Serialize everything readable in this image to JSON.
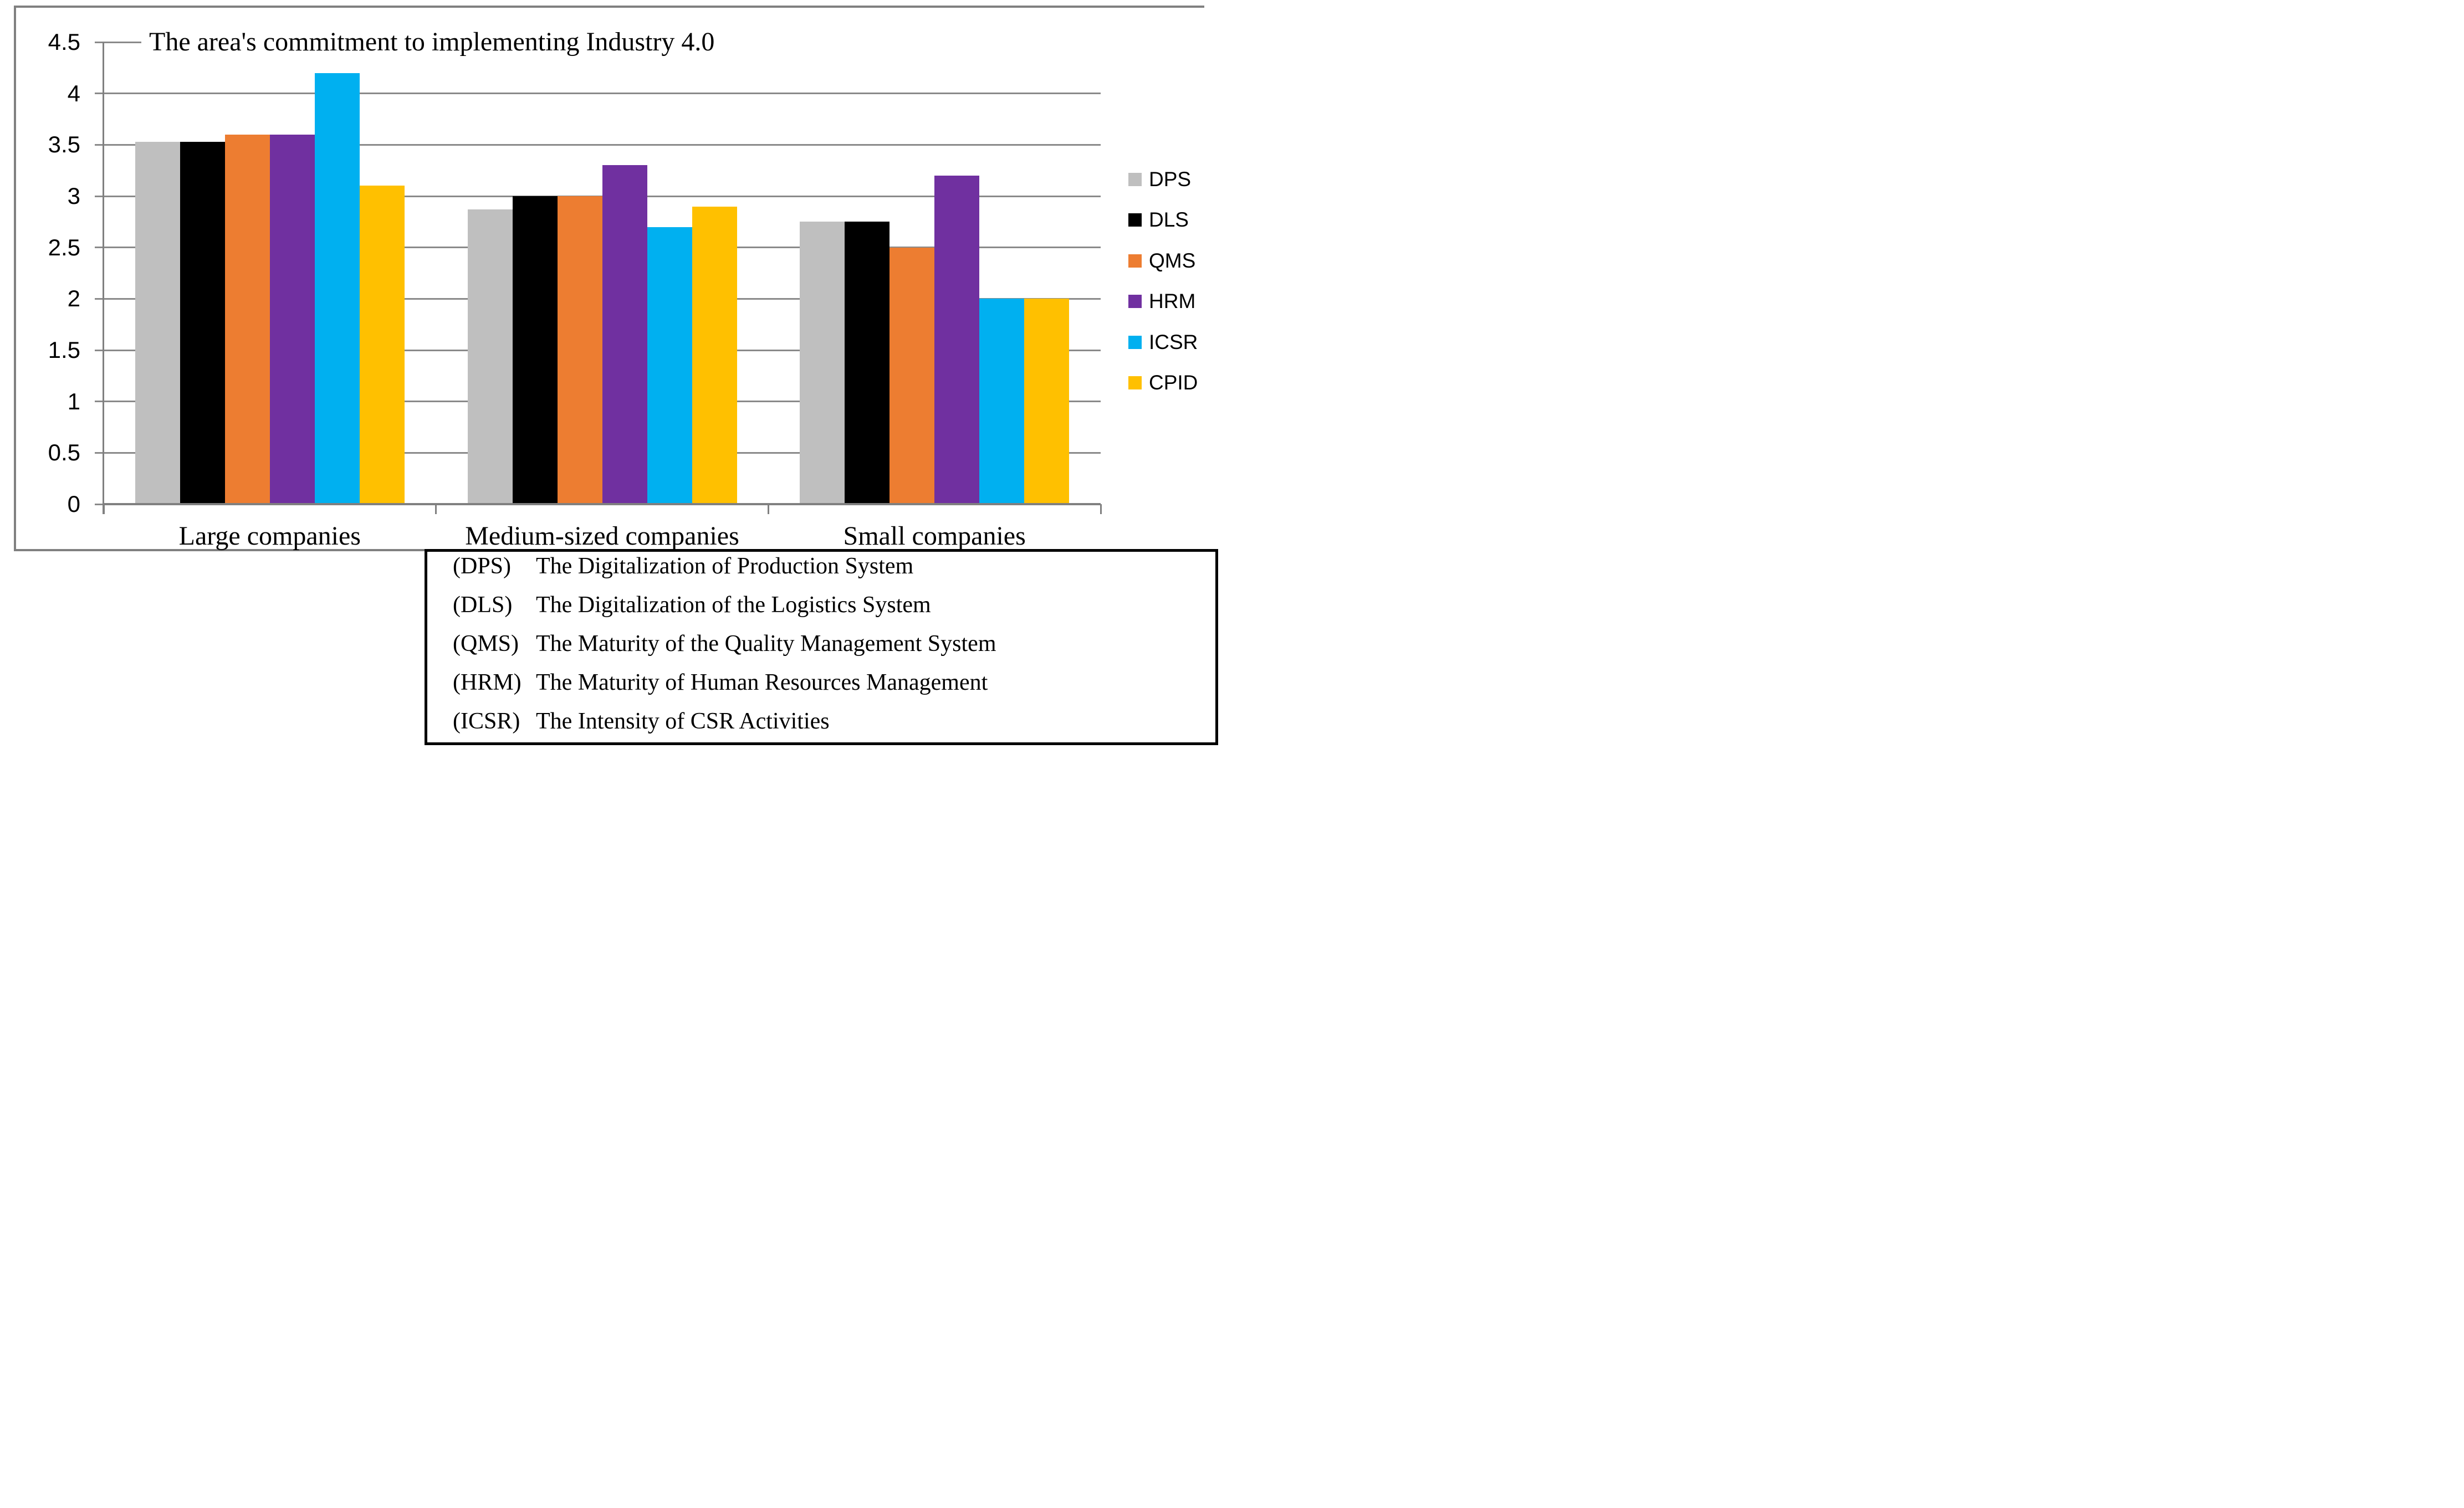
{
  "chart_data": {
    "type": "bar",
    "title": "The area's commitment to implementing Industry 4.0",
    "categories": [
      "Large companies",
      "Medium-sized companies",
      "Small companies"
    ],
    "series": [
      {
        "name": "DPS",
        "color": "#BFBFBF",
        "values": [
          3.53,
          2.87,
          2.75
        ]
      },
      {
        "name": "DLS",
        "color": "#000000",
        "values": [
          3.53,
          3.0,
          2.75
        ]
      },
      {
        "name": "QMS",
        "color": "#ED7D31",
        "values": [
          3.6,
          3.0,
          2.5
        ]
      },
      {
        "name": "HRM",
        "color": "#7030A0",
        "values": [
          3.6,
          3.3,
          3.2
        ]
      },
      {
        "name": "ICSR",
        "color": "#00B0F0",
        "values": [
          4.2,
          2.7,
          2.0
        ]
      },
      {
        "name": "CPID",
        "color": "#FFC000",
        "values": [
          3.1,
          2.9,
          2.0
        ]
      }
    ],
    "xlabel": "",
    "ylabel": "",
    "ylim": [
      0,
      4.5
    ],
    "ytick_labels": [
      "0",
      "0.5",
      "1",
      "1.5",
      "2",
      "2.5",
      "3",
      "3.5",
      "4",
      "4.5"
    ],
    "grid": true,
    "legend_position": "right"
  },
  "legend": {
    "items": [
      {
        "label": "DPS",
        "color": "#BFBFBF"
      },
      {
        "label": "DLS",
        "color": "#000000"
      },
      {
        "label": "QMS",
        "color": "#ED7D31"
      },
      {
        "label": "HRM",
        "color": "#7030A0"
      },
      {
        "label": "ICSR",
        "color": "#00B0F0"
      },
      {
        "label": "CPID",
        "color": "#FFC000"
      }
    ]
  },
  "definitions": {
    "items": [
      {
        "abbr": "(DPS)",
        "text": "The Digitalization of Production System"
      },
      {
        "abbr": "(DLS)",
        "text": "The Digitalization of the Logistics System"
      },
      {
        "abbr": "(QMS)",
        "text": "The Maturity of the Quality Management System"
      },
      {
        "abbr": "(HRM)",
        "text": "The Maturity of Human Resources Management"
      },
      {
        "abbr": "(ICSR)",
        "text": "The Intensity of CSR Activities"
      }
    ]
  },
  "colors": {
    "gridline": "#8a8a8a",
    "axis": "#808080",
    "chart_border": "#808080",
    "box_border": "#000000",
    "background": "#FFFFFF"
  }
}
